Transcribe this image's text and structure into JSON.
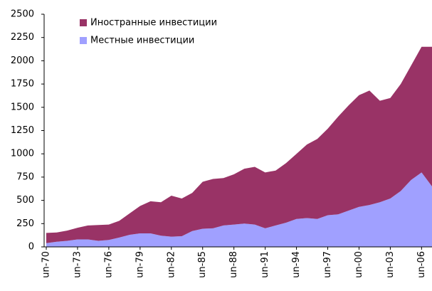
{
  "chart_data": {
    "type": "stacked_area",
    "categories": [
      "un-70",
      null,
      null,
      "un-73",
      null,
      null,
      "un-76",
      null,
      null,
      "un-79",
      null,
      null,
      "un-82",
      null,
      null,
      "un-85",
      null,
      null,
      "un-88",
      null,
      null,
      "un-91",
      null,
      null,
      "un-94",
      null,
      null,
      "un-97",
      null,
      null,
      "un-00",
      null,
      null,
      "un-03",
      null,
      null,
      "un-06",
      null
    ],
    "series": [
      {
        "name": "Иностранные инвестиции",
        "color": "#993366",
        "values": [
          110,
          100,
          110,
          125,
          150,
          170,
          165,
          180,
          230,
          295,
          345,
          360,
          440,
          405,
          410,
          505,
          530,
          510,
          540,
          590,
          620,
          600,
          590,
          640,
          700,
          790,
          860,
          930,
          1050,
          1130,
          1200,
          1230,
          1090,
          1080,
          1150,
          1230,
          1350,
          1500
        ]
      },
      {
        "name": "Местные инвестиции",
        "color": "#a0a0ff",
        "values": [
          40,
          55,
          65,
          80,
          80,
          65,
          75,
          100,
          130,
          145,
          145,
          120,
          110,
          115,
          170,
          195,
          200,
          230,
          240,
          250,
          240,
          200,
          230,
          260,
          300,
          310,
          300,
          340,
          350,
          390,
          430,
          450,
          480,
          520,
          600,
          720,
          800,
          650
        ]
      }
    ],
    "ylim": [
      0,
      2500
    ],
    "yticks": [
      0,
      250,
      500,
      750,
      1000,
      1250,
      1500,
      1750,
      2000,
      2250,
      2500
    ],
    "grid": false,
    "legend": "upper left"
  }
}
